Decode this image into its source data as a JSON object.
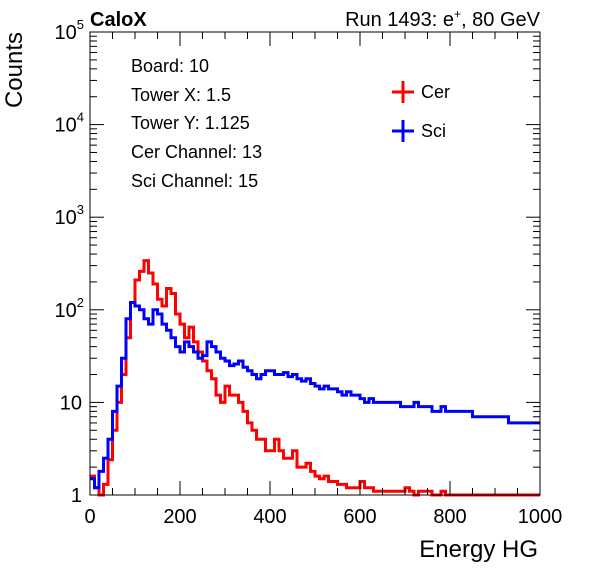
{
  "header": {
    "experiment": "CaloX",
    "run_label": "Run 1493: e",
    "run_sup": "+",
    "run_suffix": ", 80 GeV"
  },
  "info": {
    "lines": [
      "Board: 10",
      "Tower X: 1.5",
      "Tower Y: 1.125",
      "Cer Channel: 13",
      "Sci Channel: 15"
    ]
  },
  "colors": {
    "cer": "#ff0000",
    "sci": "#0000ff",
    "axis": "#000000"
  },
  "chart_data": {
    "type": "line",
    "xlabel": "Energy HG",
    "ylabel": "Counts",
    "xlim": [
      0,
      1000
    ],
    "ylim": [
      1,
      100000
    ],
    "yscale": "log",
    "legend": "top-right",
    "x_ticks": [
      0,
      200,
      400,
      600,
      800,
      1000
    ],
    "y_ticks": [
      {
        "base": "1",
        "exp": ""
      },
      {
        "base": "10",
        "exp": ""
      },
      {
        "base": "10",
        "exp": "2"
      },
      {
        "base": "10",
        "exp": "3"
      },
      {
        "base": "10",
        "exp": "4"
      },
      {
        "base": "10",
        "exp": "5"
      }
    ],
    "x_step": 10,
    "series": [
      {
        "name": "Cer",
        "color": "#ff0000",
        "values": [
          1.6,
          1.2,
          1,
          1.3,
          2.4,
          5,
          10,
          20,
          50,
          120,
          210,
          260,
          340,
          250,
          190,
          130,
          110,
          170,
          150,
          90,
          70,
          50,
          65,
          45,
          35,
          28,
          22,
          18,
          12,
          10,
          15,
          12,
          12,
          10,
          8,
          6,
          5,
          4,
          4,
          3,
          3,
          4,
          3,
          2.5,
          2.5,
          3,
          2,
          2,
          2.2,
          1.8,
          1.6,
          1.5,
          1.6,
          1.4,
          1.4,
          1.3,
          1.3,
          1.2,
          1.2,
          1.2,
          1.4,
          1.2,
          1.2,
          1.1,
          1.1,
          1.1,
          1.1,
          1.1,
          1.1,
          1.1,
          1.2,
          1.1,
          1.0,
          1.1,
          1.1,
          1.1,
          1.0,
          1.0,
          1.1,
          1.0,
          1.0,
          1.0,
          1.0,
          1.0,
          1.0,
          1.0,
          1.0,
          1.0,
          1.0,
          1.0,
          1.0,
          1.0,
          1.0,
          1.0,
          1.0,
          1.0,
          1.0,
          1.0,
          1.0,
          1.0
        ]
      },
      {
        "name": "Sci",
        "color": "#0000ff",
        "values": [
          1.5,
          1.2,
          1.8,
          2.5,
          4,
          8,
          15,
          30,
          80,
          120,
          110,
          100,
          80,
          70,
          100,
          90,
          70,
          60,
          50,
          40,
          35,
          45,
          40,
          35,
          30,
          32,
          45,
          40,
          35,
          30,
          28,
          25,
          26,
          28,
          24,
          22,
          20,
          18,
          20,
          22,
          22,
          20,
          20,
          21,
          19,
          20,
          18,
          17,
          18,
          16,
          15,
          14,
          15,
          14,
          14,
          13,
          12,
          13,
          12,
          12,
          11,
          10,
          11,
          10,
          10,
          10,
          10,
          10,
          10,
          9,
          9,
          9,
          10,
          9,
          9,
          9,
          8,
          8,
          9,
          8,
          8,
          8,
          8,
          8,
          8,
          7,
          7,
          7,
          7,
          7,
          7,
          7,
          7,
          6,
          6,
          6,
          6,
          6,
          6,
          6
        ]
      }
    ]
  }
}
